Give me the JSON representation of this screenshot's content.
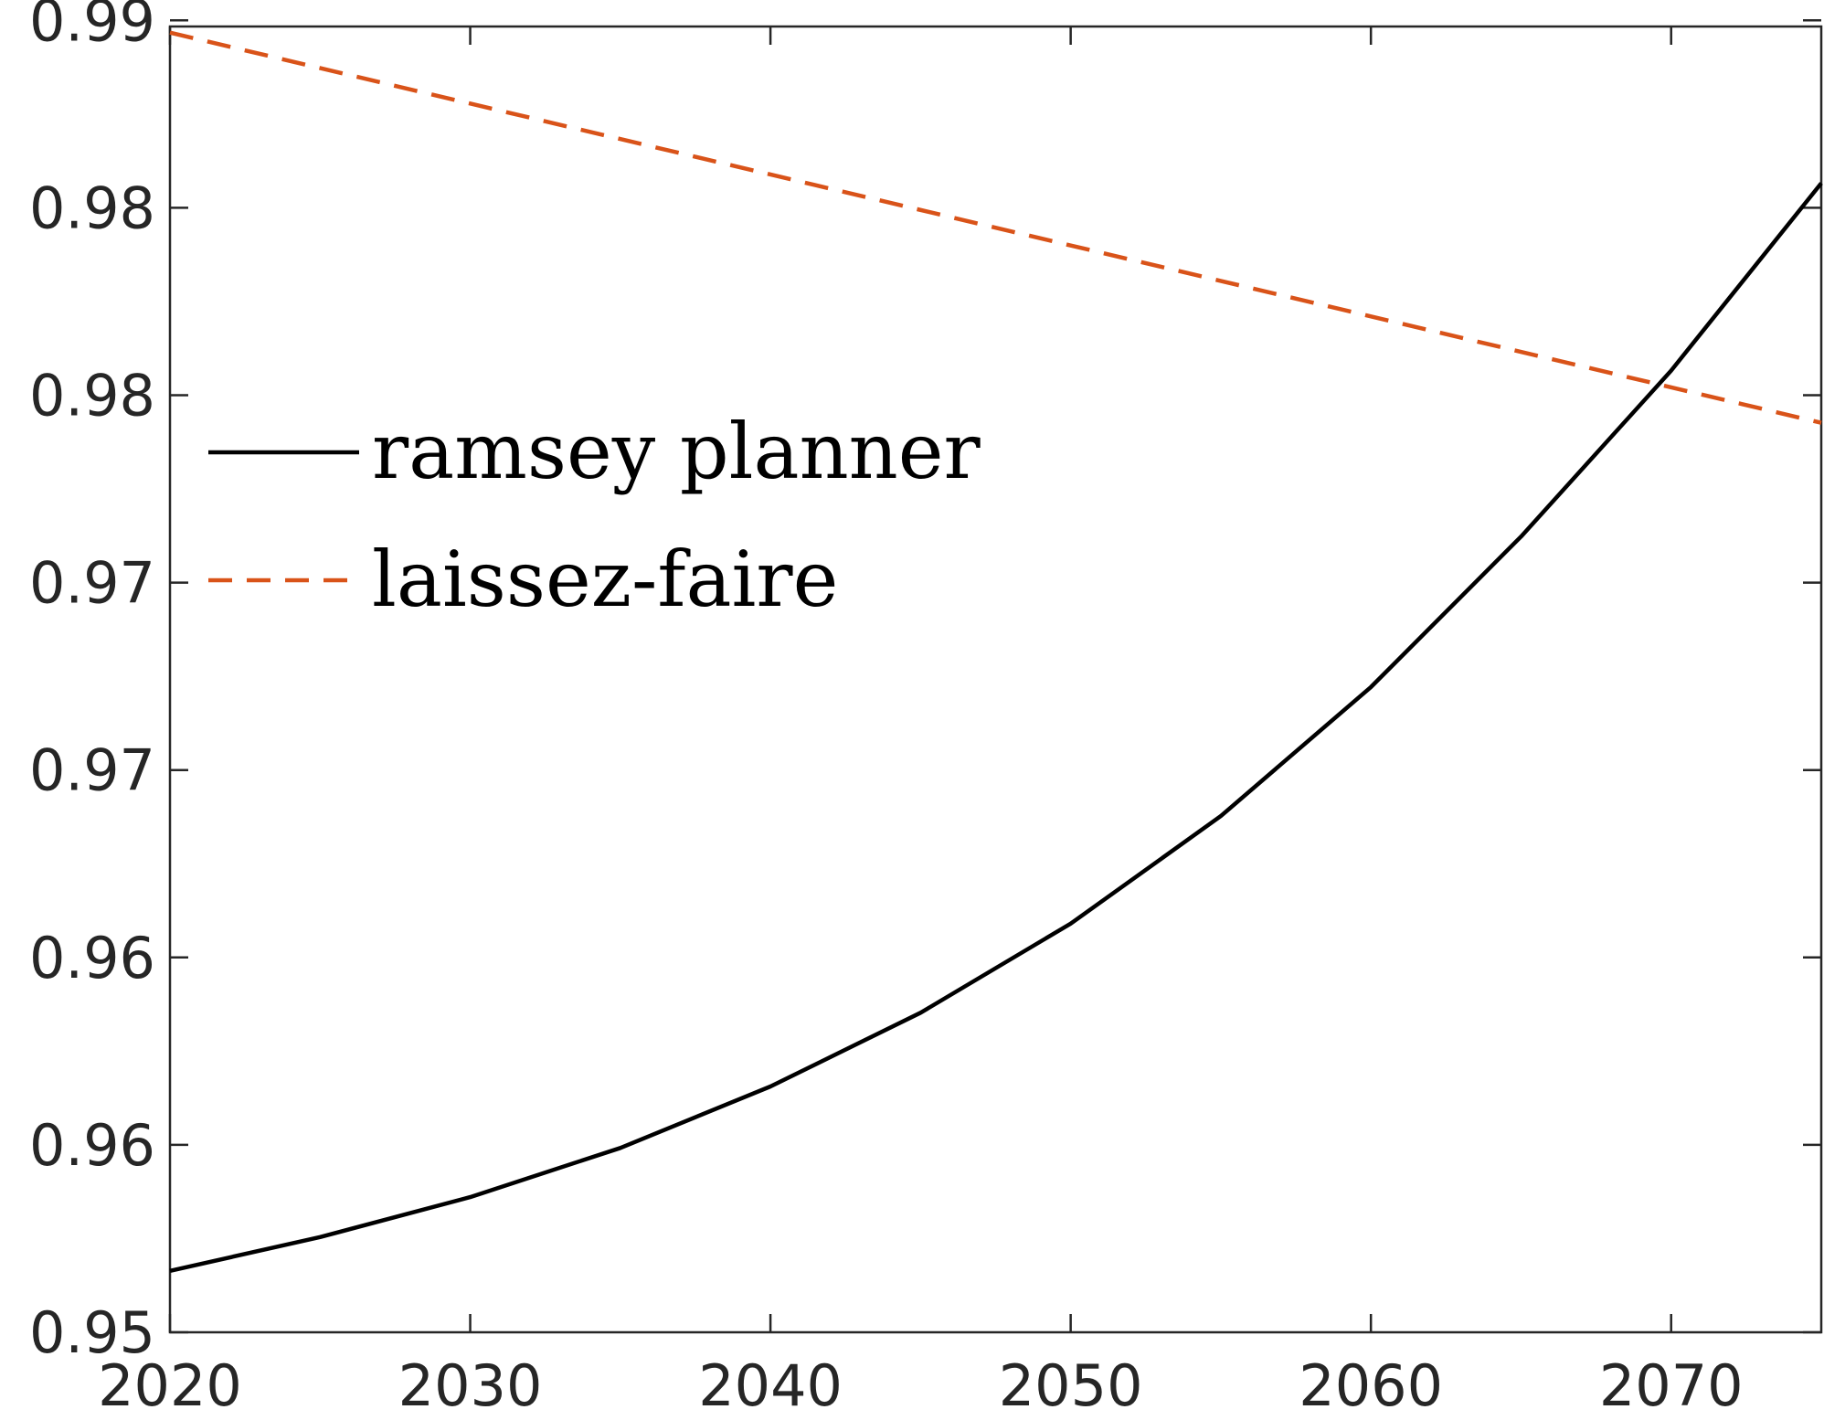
{
  "chart_data": {
    "type": "line",
    "title": "",
    "xlabel": "",
    "ylabel": "",
    "xlim": [
      2020,
      2075
    ],
    "ylim": [
      0.95,
      0.9925
    ],
    "x_ticks": [
      2020,
      2030,
      2040,
      2050,
      2060,
      2070
    ],
    "x_tick_labels": [
      "2020",
      "2030",
      "2040",
      "2050",
      "2060",
      "2070"
    ],
    "y_ticks": [
      0.95,
      0.9561,
      0.9622,
      0.9683,
      0.9744,
      0.9805,
      0.9866,
      0.9927
    ],
    "y_tick_labels": [
      "0.95",
      "0.96",
      "0.96",
      "0.97",
      "0.97",
      "0.98",
      "0.98",
      "0.99"
    ],
    "grid": false,
    "box": true,
    "legend": {
      "position": "upper-left-inside",
      "box": false
    },
    "series": [
      {
        "name": "ramsey planner",
        "color": "#000000",
        "style": "solid",
        "x": [
          2020,
          2025,
          2030,
          2035,
          2040,
          2045,
          2050,
          2055,
          2060,
          2065,
          2070,
          2075
        ],
        "y": [
          0.952,
          0.9531,
          0.9544,
          0.956,
          0.958,
          0.9604,
          0.9633,
          0.9668,
          0.971,
          0.9759,
          0.9813,
          0.9874
        ]
      },
      {
        "name": "laissez-faire",
        "color": "#D95319",
        "style": "dashed",
        "x": [
          2020,
          2075
        ],
        "y": [
          0.9923,
          0.9796
        ]
      }
    ]
  }
}
